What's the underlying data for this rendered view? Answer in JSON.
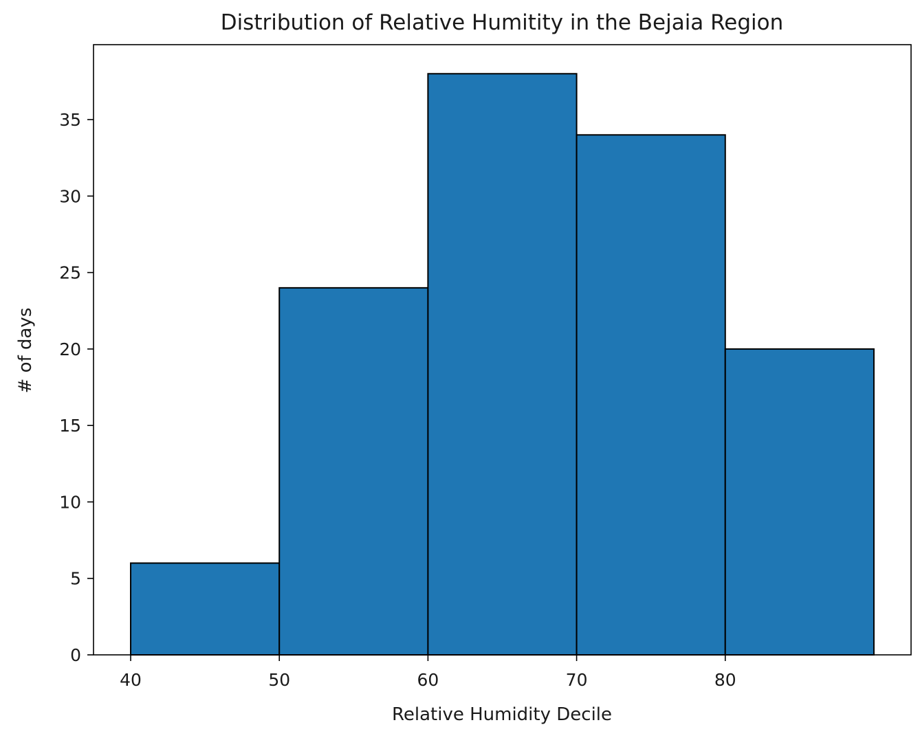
{
  "chart_data": {
    "type": "bar",
    "subtype": "histogram",
    "title": "Distribution of Relative Humitity in the Bejaia Region",
    "xlabel": "Relative Humidity Decile",
    "ylabel": "# of days",
    "bins": [
      {
        "start": 40,
        "end": 50,
        "count": 6
      },
      {
        "start": 50,
        "end": 60,
        "count": 24
      },
      {
        "start": 60,
        "end": 70,
        "count": 38
      },
      {
        "start": 70,
        "end": 80,
        "count": 34
      },
      {
        "start": 80,
        "end": 90,
        "count": 20
      }
    ],
    "xlim": [
      37.5,
      92.5
    ],
    "ylim": [
      0,
      39.9
    ],
    "xticks": [
      40,
      50,
      60,
      70,
      80
    ],
    "yticks": [
      0,
      5,
      10,
      15,
      20,
      25,
      30,
      35
    ],
    "bar_color": "#1f77b4",
    "edge_color": "#000000",
    "grid": false,
    "legend": false
  }
}
